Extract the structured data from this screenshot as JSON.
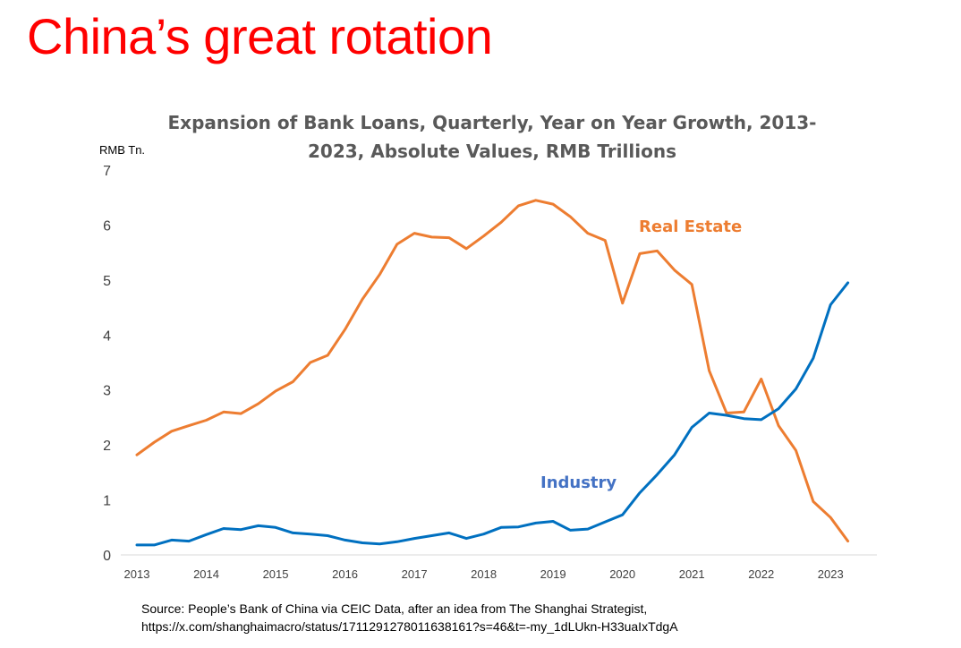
{
  "slide_title": "China’s great rotation",
  "source": {
    "line1": "Source: People’s Bank of China via CEIC Data, after an idea from The Shanghai Strategist,",
    "line2": "https://x.com/shanghaimacro/status/1711291278011638161?s=46&t=-my_1dLUkn-H33uaIxTdgA"
  },
  "colors": {
    "title": "#ff0000",
    "real_estate": "#ed7d31",
    "industry": "#0070c0",
    "industry_label": "#4472c4"
  },
  "chart_data": {
    "type": "line",
    "title_lines": [
      "Expansion of  Bank Loans, Quarterly, Year on Year Growth, 2013-",
      "2023, Absolute Values,  RMB Trillions"
    ],
    "ylabel": "RMB Tn.",
    "ylim": [
      0,
      7
    ],
    "yticks": [
      "0",
      "1",
      "2",
      "3",
      "4",
      "5",
      "6",
      "7"
    ],
    "xlim": [
      2013,
      2023.5
    ],
    "xticks": [
      "2013",
      "2014",
      "2015",
      "2016",
      "2017",
      "2018",
      "2019",
      "2020",
      "2021",
      "2022",
      "2023"
    ],
    "grid": false,
    "legend": "inline labels",
    "series": [
      {
        "name": "Real Estate",
        "color": "#ed7d31",
        "x": [
          2013.0,
          2013.25,
          2013.5,
          2013.75,
          2014.0,
          2014.25,
          2014.5,
          2014.75,
          2015.0,
          2015.25,
          2015.5,
          2015.75,
          2016.0,
          2016.25,
          2016.5,
          2016.75,
          2017.0,
          2017.25,
          2017.5,
          2017.75,
          2018.0,
          2018.25,
          2018.5,
          2018.75,
          2019.0,
          2019.25,
          2019.5,
          2019.75,
          2020.0,
          2020.25,
          2020.5,
          2020.75,
          2021.0,
          2021.25,
          2021.5,
          2021.75,
          2022.0,
          2022.25,
          2022.5,
          2022.75,
          2023.0,
          2023.25
        ],
        "values": [
          1.82,
          2.05,
          2.25,
          2.35,
          2.45,
          2.6,
          2.57,
          2.75,
          2.98,
          3.15,
          3.5,
          3.63,
          4.1,
          4.65,
          5.1,
          5.65,
          5.85,
          5.78,
          5.77,
          5.57,
          5.8,
          6.05,
          6.35,
          6.45,
          6.38,
          6.15,
          5.85,
          5.72,
          4.58,
          5.48,
          5.53,
          5.18,
          4.92,
          3.35,
          2.58,
          2.6,
          3.2,
          2.35,
          1.9,
          0.97,
          0.68,
          0.25
        ]
      },
      {
        "name": "Industry",
        "color": "#0070c0",
        "x": [
          2013.0,
          2013.25,
          2013.5,
          2013.75,
          2014.0,
          2014.25,
          2014.5,
          2014.75,
          2015.0,
          2015.25,
          2015.5,
          2015.75,
          2016.0,
          2016.25,
          2016.5,
          2016.75,
          2017.0,
          2017.25,
          2017.5,
          2017.75,
          2018.0,
          2018.25,
          2018.5,
          2018.75,
          2019.0,
          2019.25,
          2019.5,
          2019.75,
          2020.0,
          2020.25,
          2020.5,
          2020.75,
          2021.0,
          2021.25,
          2021.5,
          2021.75,
          2022.0,
          2022.25,
          2022.5,
          2022.75,
          2023.0,
          2023.25
        ],
        "values": [
          0.18,
          0.18,
          0.27,
          0.25,
          0.37,
          0.48,
          0.46,
          0.53,
          0.5,
          0.4,
          0.38,
          0.35,
          0.27,
          0.22,
          0.2,
          0.24,
          0.3,
          0.35,
          0.4,
          0.3,
          0.38,
          0.5,
          0.51,
          0.58,
          0.61,
          0.45,
          0.47,
          0.6,
          0.73,
          1.13,
          1.46,
          1.82,
          2.32,
          2.58,
          2.54,
          2.48,
          2.46,
          2.66,
          3.02,
          3.58,
          4.55,
          4.95
        ]
      }
    ]
  }
}
